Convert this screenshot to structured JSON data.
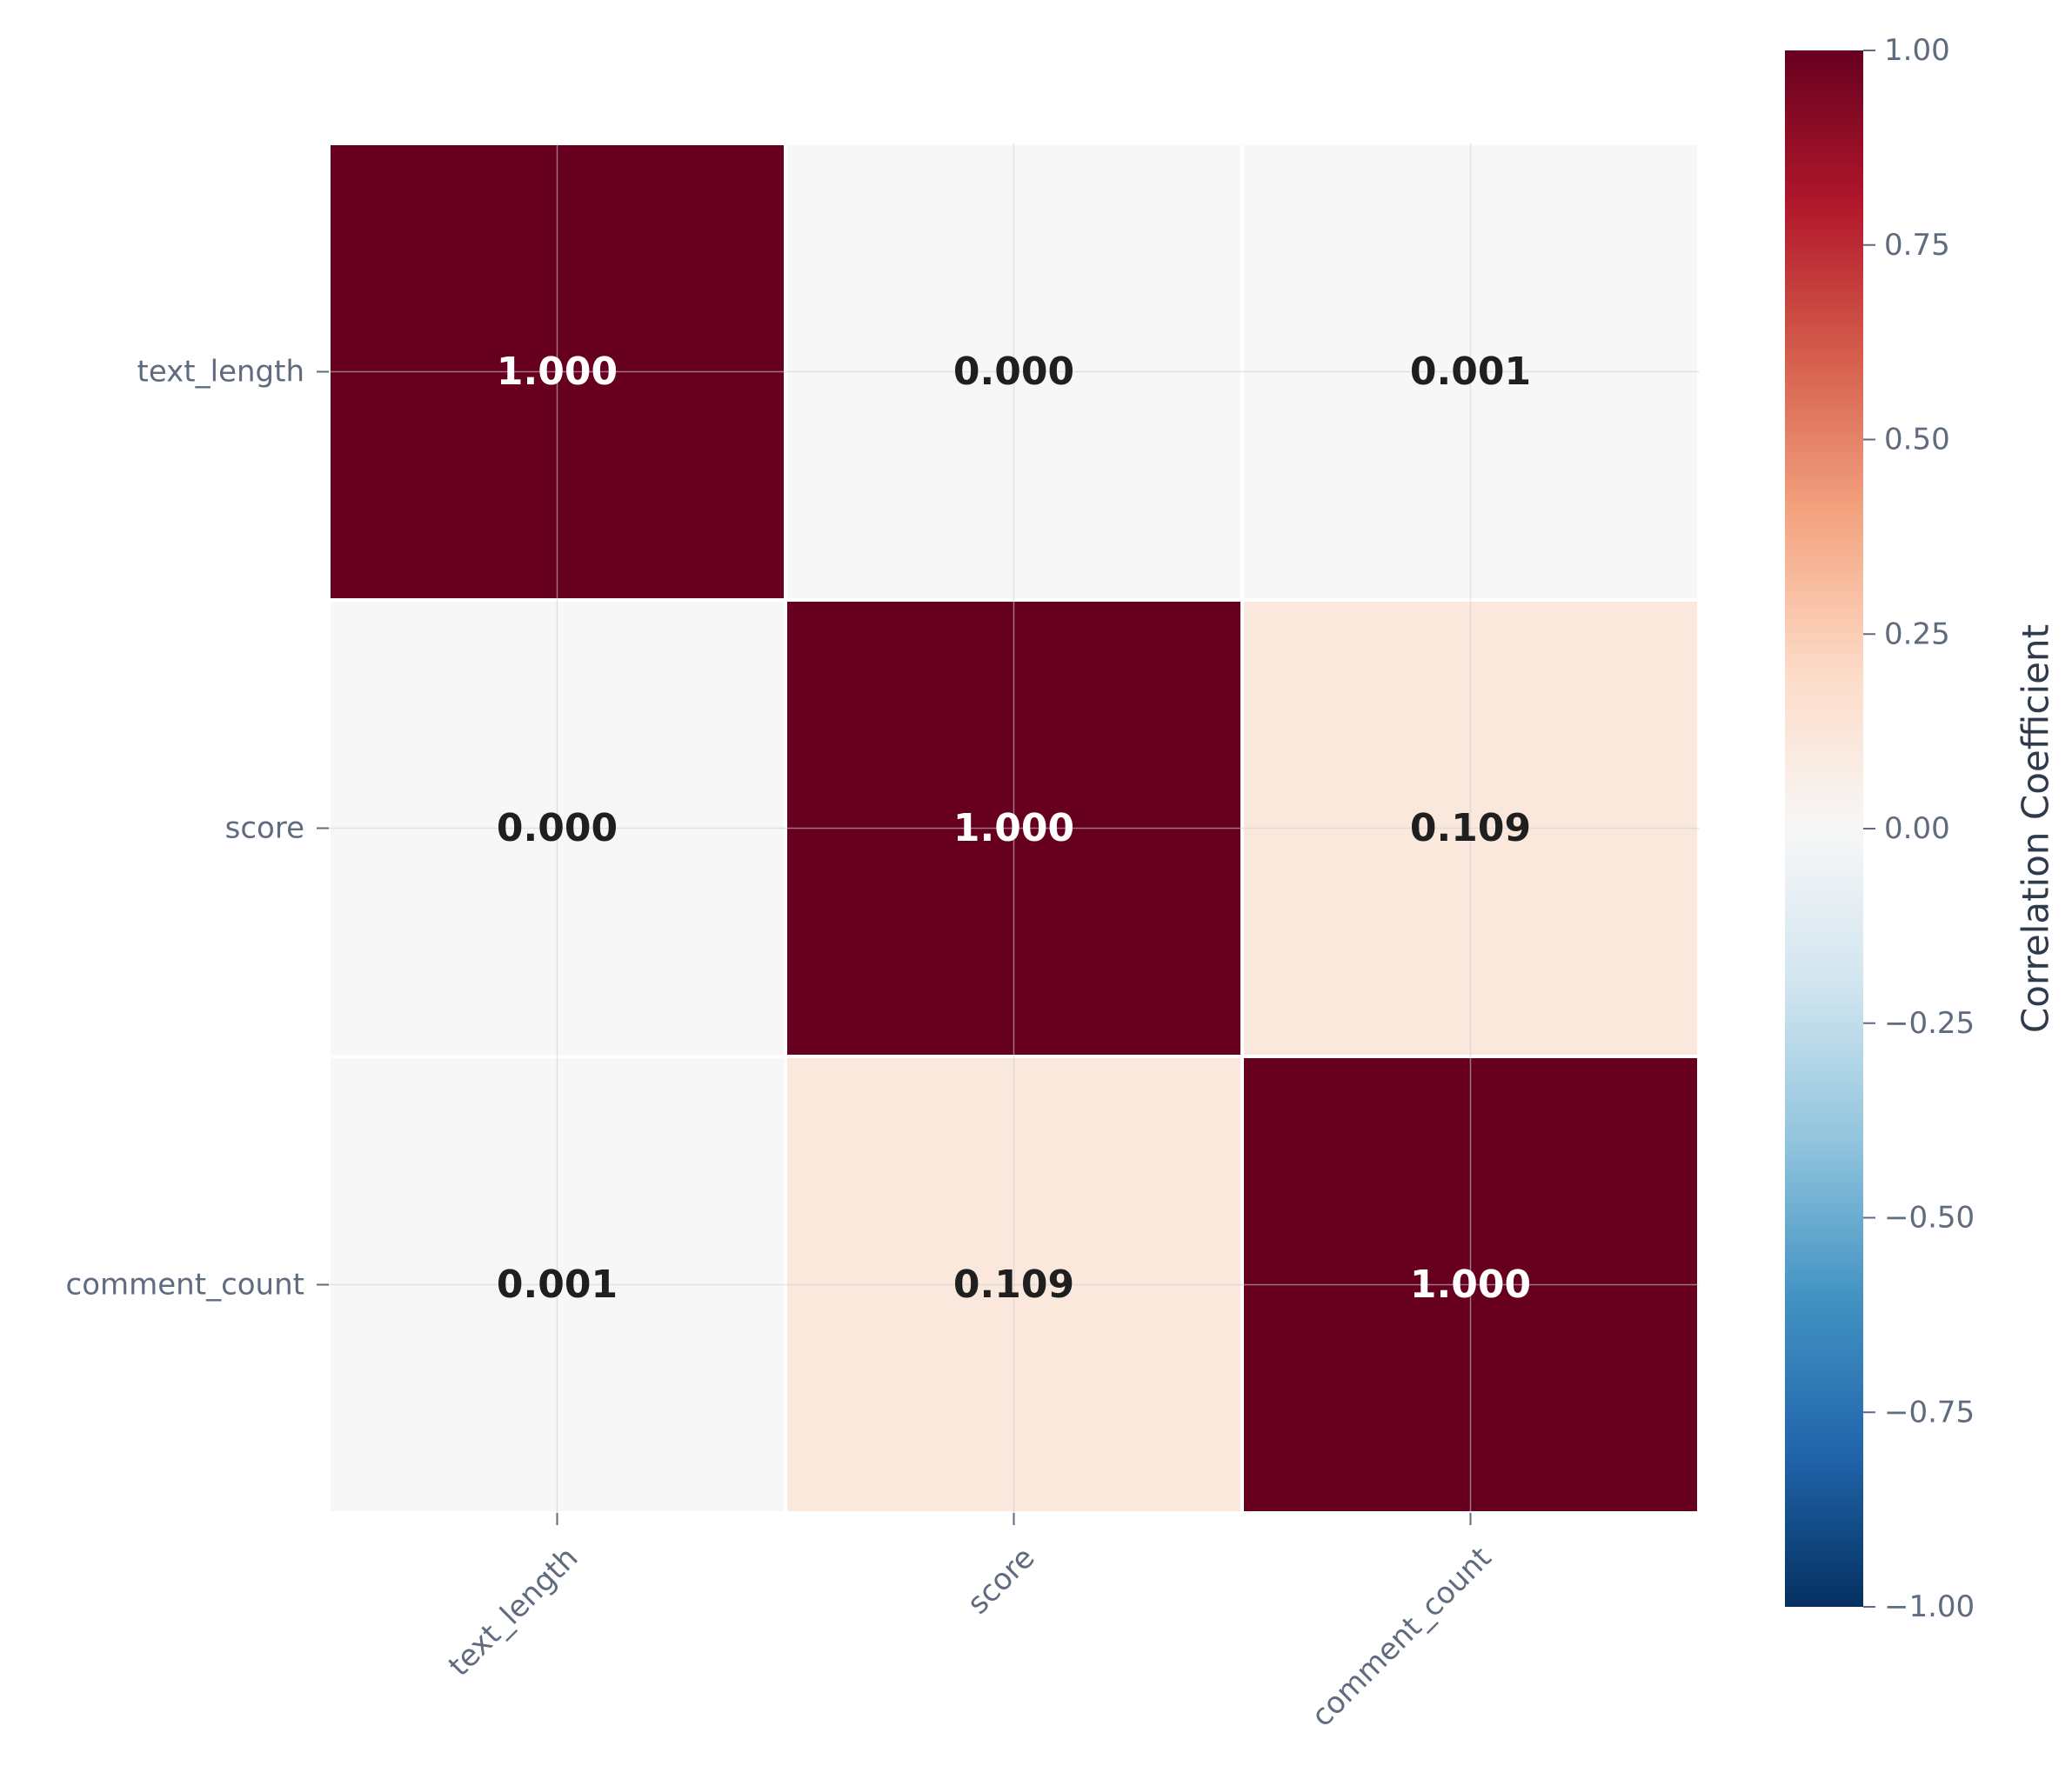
{
  "chart_data": {
    "type": "heatmap",
    "title": "",
    "xlabel": "",
    "ylabel": "",
    "x_labels": [
      "text_length",
      "score",
      "comment_count"
    ],
    "y_labels": [
      "text_length",
      "score",
      "comment_count"
    ],
    "matrix": [
      [
        1.0,
        0.0,
        0.001
      ],
      [
        0.0,
        1.0,
        0.109
      ],
      [
        0.001,
        0.109,
        1.0
      ]
    ],
    "cell_labels": [
      [
        "1.000",
        "0.000",
        "0.001"
      ],
      [
        "0.000",
        "1.000",
        "0.109"
      ],
      [
        "0.001",
        "0.109",
        "1.000"
      ]
    ],
    "colormap": "RdBu_r",
    "vmin": -1.0,
    "vmax": 1.0,
    "colorbar": {
      "label": "Correlation Coefficient",
      "ticks": [
        1.0,
        0.75,
        0.5,
        0.25,
        0.0,
        -0.25,
        -0.5,
        -0.75,
        -1.0
      ],
      "tick_labels": [
        "1.00",
        "0.75",
        "0.50",
        "0.25",
        "0.00",
        "−0.25",
        "−0.50",
        "−0.75",
        "−1.00"
      ]
    },
    "grid": true
  }
}
